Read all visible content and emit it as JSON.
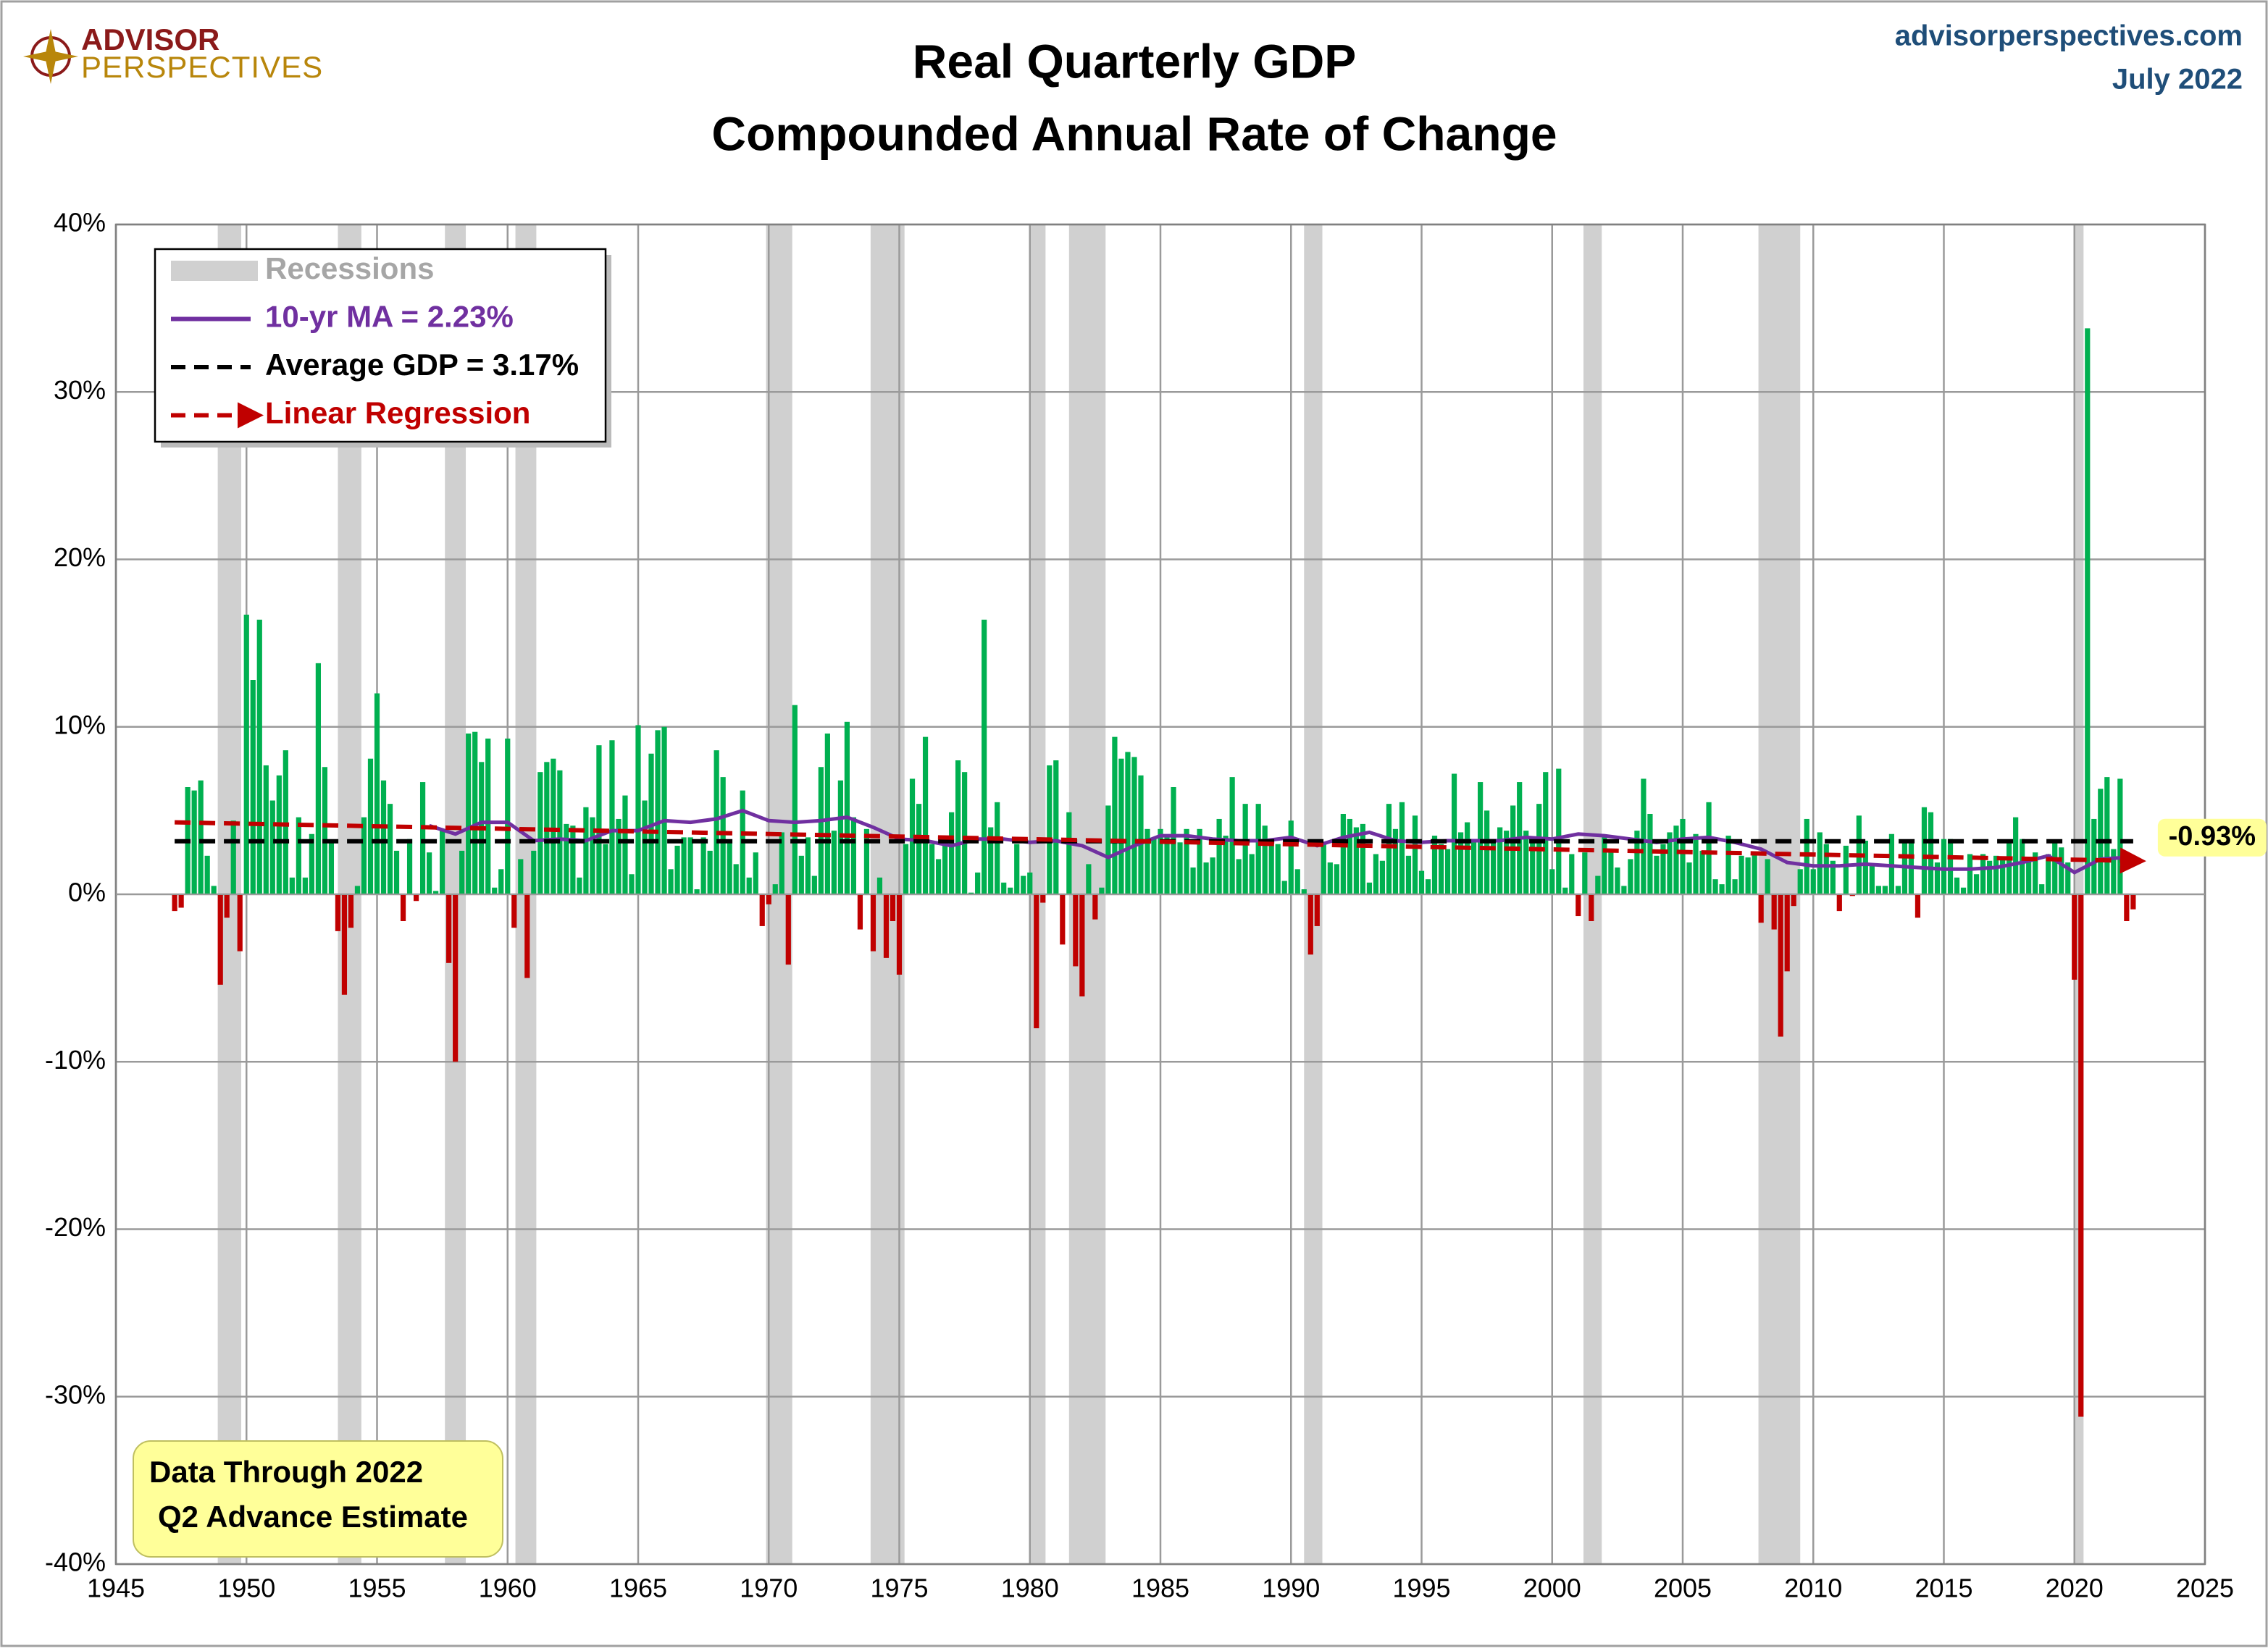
{
  "brand": {
    "top": "ADVISOR",
    "bottom": "PERSPECTIVES"
  },
  "site": "advisorperspectives.com",
  "date": "July 2022",
  "note": [
    "Data Through 2022",
    "Q2 Advance Estimate"
  ],
  "chart_data": {
    "type": "bar",
    "title": [
      "Real Quarterly GDP",
      "Compounded Annual Rate of Change"
    ],
    "color": "#00b050",
    "negative_color": "#c00000",
    "recession_label": "Recessions",
    "recession_color": "#d0d0d0",
    "recessions": [
      [
        1948.9,
        1949.8
      ],
      [
        1953.5,
        1954.4
      ],
      [
        1957.6,
        1958.4
      ],
      [
        1960.3,
        1961.1
      ],
      [
        1969.9,
        1970.9
      ],
      [
        1973.9,
        1975.2
      ],
      [
        1980.0,
        1980.6
      ],
      [
        1981.5,
        1982.9
      ],
      [
        1990.5,
        1991.2
      ],
      [
        2001.2,
        2001.9
      ],
      [
        2007.9,
        2009.5
      ],
      [
        2020.0,
        2020.35
      ]
    ],
    "xlim": [
      1945,
      2025
    ],
    "xticks": [
      1945,
      1950,
      1955,
      1960,
      1965,
      1970,
      1975,
      1980,
      1985,
      1990,
      1995,
      2000,
      2005,
      2010,
      2015,
      2020,
      2025
    ],
    "ylim": [
      -40,
      40
    ],
    "yticks": [
      {
        "value": -40,
        "label": "-40%"
      },
      {
        "value": -30,
        "label": "-30%"
      },
      {
        "value": -20,
        "label": "-20%"
      },
      {
        "value": -10,
        "label": "-10%"
      },
      {
        "value": 0,
        "label": "0%"
      },
      {
        "value": 10,
        "label": "10%"
      },
      {
        "value": 20,
        "label": "20%"
      },
      {
        "value": 30,
        "label": "30%"
      },
      {
        "value": 40,
        "label": "40%"
      }
    ],
    "grid": true,
    "x": [
      1947.25,
      1947.5,
      1947.75,
      1948,
      1948.25,
      1948.5,
      1948.75,
      1949,
      1949.25,
      1949.5,
      1949.75,
      1950,
      1950.25,
      1950.5,
      1950.75,
      1951,
      1951.25,
      1951.5,
      1951.75,
      1952,
      1952.25,
      1952.5,
      1952.75,
      1953,
      1953.25,
      1953.5,
      1953.75,
      1954,
      1954.25,
      1954.5,
      1954.75,
      1955,
      1955.25,
      1955.5,
      1955.75,
      1956,
      1956.25,
      1956.5,
      1956.75,
      1957,
      1957.25,
      1957.5,
      1957.75,
      1958,
      1958.25,
      1958.5,
      1958.75,
      1959,
      1959.25,
      1959.5,
      1959.75,
      1960,
      1960.25,
      1960.5,
      1960.75,
      1961,
      1961.25,
      1961.5,
      1961.75,
      1962,
      1962.25,
      1962.5,
      1962.75,
      1963,
      1963.25,
      1963.5,
      1963.75,
      1964,
      1964.25,
      1964.5,
      1964.75,
      1965,
      1965.25,
      1965.5,
      1965.75,
      1966,
      1966.25,
      1966.5,
      1966.75,
      1967,
      1967.25,
      1967.5,
      1967.75,
      1968,
      1968.25,
      1968.5,
      1968.75,
      1969,
      1969.25,
      1969.5,
      1969.75,
      1970,
      1970.25,
      1970.5,
      1970.75,
      1971,
      1971.25,
      1971.5,
      1971.75,
      1972,
      1972.25,
      1972.5,
      1972.75,
      1973,
      1973.25,
      1973.5,
      1973.75,
      1974,
      1974.25,
      1974.5,
      1974.75,
      1975,
      1975.25,
      1975.5,
      1975.75,
      1976,
      1976.25,
      1976.5,
      1976.75,
      1977,
      1977.25,
      1977.5,
      1977.75,
      1978,
      1978.25,
      1978.5,
      1978.75,
      1979,
      1979.25,
      1979.5,
      1979.75,
      1980,
      1980.25,
      1980.5,
      1980.75,
      1981,
      1981.25,
      1981.5,
      1981.75,
      1982,
      1982.25,
      1982.5,
      1982.75,
      1983,
      1983.25,
      1983.5,
      1983.75,
      1984,
      1984.25,
      1984.5,
      1984.75,
      1985,
      1985.25,
      1985.5,
      1985.75,
      1986,
      1986.25,
      1986.5,
      1986.75,
      1987,
      1987.25,
      1987.5,
      1987.75,
      1988,
      1988.25,
      1988.5,
      1988.75,
      1989,
      1989.25,
      1989.5,
      1989.75,
      1990,
      1990.25,
      1990.5,
      1990.75,
      1991,
      1991.25,
      1991.5,
      1991.75,
      1992,
      1992.25,
      1992.5,
      1992.75,
      1993,
      1993.25,
      1993.5,
      1993.75,
      1994,
      1994.25,
      1994.5,
      1994.75,
      1995,
      1995.25,
      1995.5,
      1995.75,
      1996,
      1996.25,
      1996.5,
      1996.75,
      1997,
      1997.25,
      1997.5,
      1997.75,
      1998,
      1998.25,
      1998.5,
      1998.75,
      1999,
      1999.25,
      1999.5,
      1999.75,
      2000,
      2000.25,
      2000.5,
      2000.75,
      2001,
      2001.25,
      2001.5,
      2001.75,
      2002,
      2002.25,
      2002.5,
      2002.75,
      2003,
      2003.25,
      2003.5,
      2003.75,
      2004,
      2004.25,
      2004.5,
      2004.75,
      2005,
      2005.25,
      2005.5,
      2005.75,
      2006,
      2006.25,
      2006.5,
      2006.75,
      2007,
      2007.25,
      2007.5,
      2007.75,
      2008,
      2008.25,
      2008.5,
      2008.75,
      2009,
      2009.25,
      2009.5,
      2009.75,
      2010,
      2010.25,
      2010.5,
      2010.75,
      2011,
      2011.25,
      2011.5,
      2011.75,
      2012,
      2012.25,
      2012.5,
      2012.75,
      2013,
      2013.25,
      2013.5,
      2013.75,
      2014,
      2014.25,
      2014.5,
      2014.75,
      2015,
      2015.25,
      2015.5,
      2015.75,
      2016,
      2016.25,
      2016.5,
      2016.75,
      2017,
      2017.25,
      2017.5,
      2017.75,
      2018,
      2018.25,
      2018.5,
      2018.75,
      2019,
      2019.25,
      2019.5,
      2019.75,
      2020,
      2020.25,
      2020.5,
      2020.75,
      2021,
      2021.25,
      2021.5,
      2021.75,
      2022,
      2022.25
    ],
    "values": [
      -1.0,
      -0.8,
      6.4,
      6.2,
      6.8,
      2.3,
      0.5,
      -5.4,
      -1.4,
      4.4,
      -3.4,
      16.7,
      12.8,
      16.4,
      7.7,
      5.6,
      7.1,
      8.6,
      1.0,
      4.6,
      1.0,
      3.6,
      13.8,
      7.6,
      3.1,
      -2.2,
      -6.0,
      -2.0,
      0.5,
      4.6,
      8.1,
      12.0,
      6.8,
      5.4,
      2.6,
      -1.6,
      3.3,
      -0.4,
      6.7,
      2.5,
      0.2,
      3.9,
      -4.1,
      -10.0,
      2.6,
      9.6,
      9.7,
      7.9,
      9.3,
      0.4,
      1.5,
      9.3,
      -2.0,
      2.1,
      -5.0,
      2.6,
      7.3,
      7.9,
      8.1,
      7.4,
      4.2,
      4.1,
      1.0,
      5.2,
      4.6,
      8.9,
      3.0,
      9.2,
      4.5,
      5.9,
      1.2,
      10.1,
      5.6,
      8.4,
      9.8,
      10.0,
      1.5,
      2.9,
      3.4,
      3.4,
      0.3,
      3.4,
      2.6,
      8.6,
      7.0,
      3.1,
      1.8,
      6.2,
      1.0,
      2.5,
      -1.9,
      -0.6,
      0.6,
      3.7,
      -4.2,
      11.3,
      2.3,
      3.4,
      1.1,
      7.6,
      9.6,
      3.8,
      6.8,
      10.3,
      4.6,
      -2.1,
      3.9,
      -3.4,
      1.0,
      -3.8,
      -1.6,
      -4.8,
      3.0,
      6.9,
      5.4,
      9.4,
      3.0,
      2.1,
      2.9,
      4.9,
      8.0,
      7.3,
      0.1,
      1.3,
      16.4,
      4.0,
      5.5,
      0.7,
      0.4,
      3.0,
      1.1,
      1.3,
      -8.0,
      -0.5,
      7.7,
      8.0,
      -3.0,
      4.9,
      -4.3,
      -6.1,
      1.8,
      -1.5,
      0.4,
      5.3,
      9.4,
      8.1,
      8.5,
      8.2,
      7.1,
      3.9,
      3.3,
      3.9,
      3.5,
      6.4,
      3.1,
      3.9,
      1.6,
      3.9,
      1.9,
      2.2,
      4.5,
      3.5,
      7.0,
      2.1,
      5.4,
      2.4,
      5.4,
      4.1,
      3.1,
      3.0,
      0.8,
      4.4,
      1.5,
      0.3,
      -3.6,
      -1.9,
      3.1,
      1.9,
      1.8,
      4.8,
      4.5,
      4.0,
      4.2,
      0.7,
      2.4,
      2.0,
      5.4,
      3.9,
      5.5,
      2.3,
      4.7,
      1.4,
      0.9,
      3.5,
      3.0,
      2.7,
      7.2,
      3.7,
      4.3,
      3.1,
      6.7,
      5.0,
      3.1,
      4.0,
      3.8,
      5.3,
      6.7,
      3.8,
      3.4,
      5.4,
      7.3,
      1.5,
      7.5,
      0.4,
      2.4,
      -1.3,
      2.5,
      -1.6,
      1.1,
      3.4,
      2.5,
      1.6,
      0.5,
      2.1,
      3.8,
      6.9,
      4.8,
      2.3,
      3.0,
      3.7,
      4.1,
      4.5,
      1.9,
      3.6,
      2.6,
      5.5,
      0.9,
      0.6,
      3.5,
      0.9,
      2.3,
      2.2,
      2.5,
      -1.7,
      2.1,
      -2.1,
      -8.5,
      -4.6,
      -0.7,
      1.5,
      4.5,
      1.5,
      3.7,
      3.0,
      2.0,
      -1.0,
      2.9,
      -0.1,
      4.7,
      3.2,
      1.7,
      0.5,
      0.5,
      3.6,
      0.5,
      3.2,
      3.2,
      -1.4,
      5.2,
      4.9,
      1.9,
      3.3,
      3.3,
      1.0,
      0.4,
      2.4,
      1.2,
      2.4,
      2.0,
      2.3,
      2.2,
      3.2,
      4.6,
      3.3,
      2.1,
      2.5,
      0.6,
      2.4,
      3.2,
      2.8,
      1.9,
      -5.1,
      -31.2,
      33.8,
      4.5,
      6.3,
      7.0,
      2.7,
      6.9,
      -1.6,
      -0.9
    ],
    "series": [
      {
        "name": "10-yr MA = 2.23%",
        "color": "#7030a0",
        "style": "solid",
        "x": [
          1957,
          1958,
          1959,
          1960,
          1961,
          1962,
          1963,
          1964,
          1965,
          1966,
          1967,
          1968,
          1969,
          1970,
          1971,
          1972,
          1973,
          1974,
          1975,
          1976,
          1977,
          1978,
          1979,
          1980,
          1981,
          1982,
          1983,
          1984,
          1985,
          1986,
          1987,
          1988,
          1989,
          1990,
          1991,
          1992,
          1993,
          1994,
          1995,
          1996,
          1997,
          1998,
          1999,
          2000,
          2001,
          2002,
          2003,
          2004,
          2005,
          2006,
          2007,
          2008,
          2009,
          2010,
          2011,
          2012,
          2013,
          2014,
          2015,
          2016,
          2017,
          2018,
          2019,
          2020,
          2021,
          2022.25
        ],
        "values": [
          4.1,
          3.6,
          4.3,
          4.3,
          3.2,
          3.3,
          3.2,
          3.8,
          3.8,
          4.4,
          4.3,
          4.5,
          5.0,
          4.4,
          4.3,
          4.4,
          4.6,
          4.0,
          3.3,
          3.2,
          2.9,
          3.3,
          3.3,
          3.1,
          3.2,
          2.9,
          2.2,
          2.9,
          3.5,
          3.5,
          3.3,
          3.2,
          3.2,
          3.4,
          2.9,
          3.4,
          3.7,
          3.2,
          3.1,
          3.2,
          3.2,
          3.2,
          3.4,
          3.3,
          3.6,
          3.5,
          3.3,
          3.1,
          3.3,
          3.4,
          3.1,
          2.7,
          1.9,
          1.7,
          1.7,
          1.8,
          1.7,
          1.6,
          1.5,
          1.5,
          1.6,
          1.9,
          2.3,
          1.3,
          2.1,
          2.23
        ]
      },
      {
        "name": "Average GDP = 3.17%",
        "color": "#000000",
        "style": "dashed",
        "x": [
          1947.25,
          2022.25
        ],
        "values": [
          3.17,
          3.17
        ]
      },
      {
        "name": "Linear Regression",
        "color": "#c00000",
        "style": "dashed-arrow",
        "x": [
          1947.25,
          2022.25
        ],
        "values": [
          4.3,
          2.0
        ]
      }
    ],
    "annotation": "-0.93%"
  }
}
